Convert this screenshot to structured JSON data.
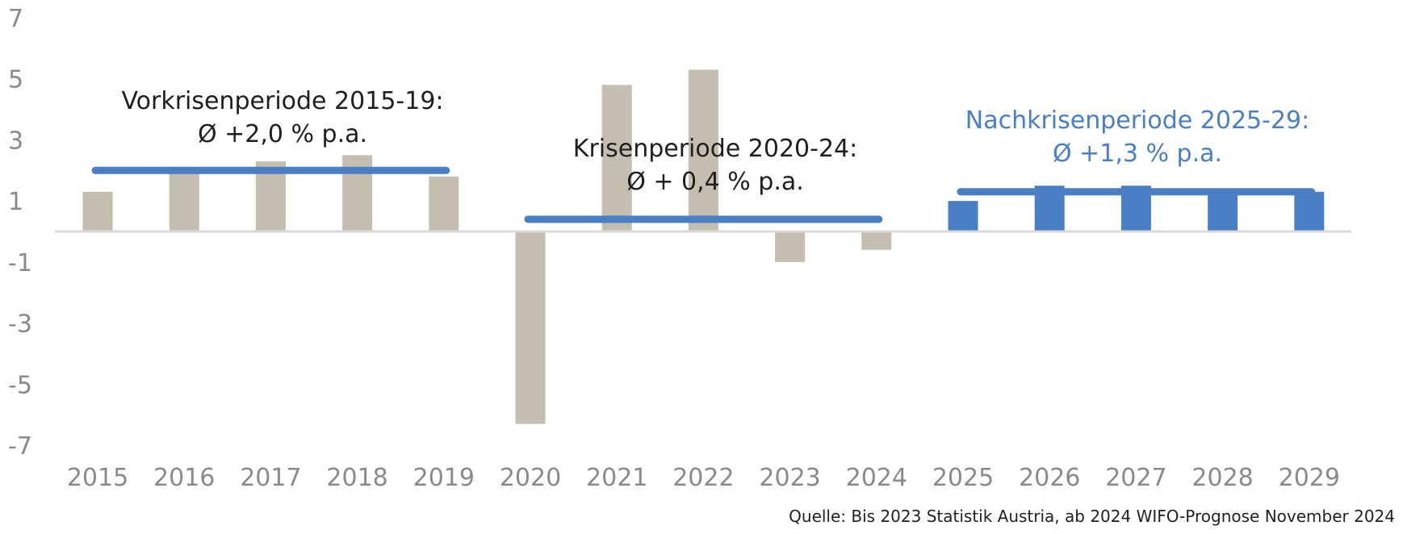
{
  "chart_data": {
    "type": "bar",
    "categories": [
      "2015",
      "2016",
      "2017",
      "2018",
      "2019",
      "2020",
      "2021",
      "2022",
      "2023",
      "2024",
      "2025",
      "2026",
      "2027",
      "2028",
      "2029"
    ],
    "values": [
      1.3,
      2.1,
      2.3,
      2.5,
      1.8,
      -6.3,
      4.8,
      5.3,
      -1.0,
      -0.6,
      1.0,
      1.5,
      1.5,
      1.3,
      1.3
    ],
    "ylim": [
      -7,
      7
    ],
    "yticks": [
      "7",
      "5",
      "3",
      "1",
      "-1",
      "-3",
      "-5",
      "-7"
    ],
    "ytick_values": [
      7,
      5,
      3,
      1,
      -1,
      -3,
      -5,
      -7
    ],
    "forecast_from_index": 10,
    "periods": [
      {
        "label_line1": "Vorkrisenperiode  2015-19:",
        "label_line2": "Ø +2,0 % p.a.",
        "start": 0,
        "end": 4,
        "average": 2.0,
        "label_color": "#1f1f1f"
      },
      {
        "label_line1": "Krisenperiode 2020-24:",
        "label_line2": "Ø + 0,4 % p.a.",
        "start": 5,
        "end": 9,
        "average": 0.4,
        "label_color": "#1f1f1f"
      },
      {
        "label_line1": "Nachkrisenperiode 2025-29:",
        "label_line2": "Ø +1,3 % p.a.",
        "start": 10,
        "end": 14,
        "average": 1.3,
        "label_color": "#4a7fc5"
      }
    ],
    "colors": {
      "history": "#c3beb0",
      "forecast": "#4a7fc5",
      "average_line": "#4a7fc5",
      "zero_line": "#d9d9d9"
    }
  },
  "source": "Quelle: Bis 2023 Statistik Austria, ab 2024 WIFO-Prognose November 2024"
}
